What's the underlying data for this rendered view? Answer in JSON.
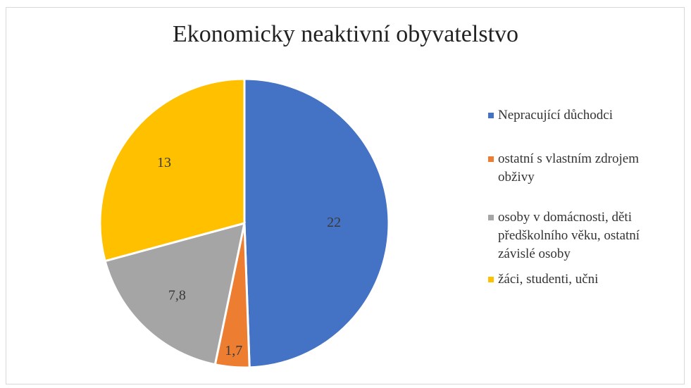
{
  "chart_data": {
    "type": "pie",
    "title": "Ekonomicky neaktivní obyvatelstvo",
    "categories": [
      "Nepracující důchodci",
      "ostatní s vlastním zdrojem obživy",
      "osoby v domácnosti, děti předškolního věku, ostatní závislé osoby",
      "žáci, studenti, učni"
    ],
    "values": [
      22,
      1.7,
      7.8,
      13
    ],
    "value_labels": [
      "22",
      "1,7",
      "7,8",
      "13"
    ],
    "colors": [
      "#4472C4",
      "#ED7D31",
      "#A5A5A5",
      "#FFC000"
    ],
    "legend_position": "right"
  }
}
